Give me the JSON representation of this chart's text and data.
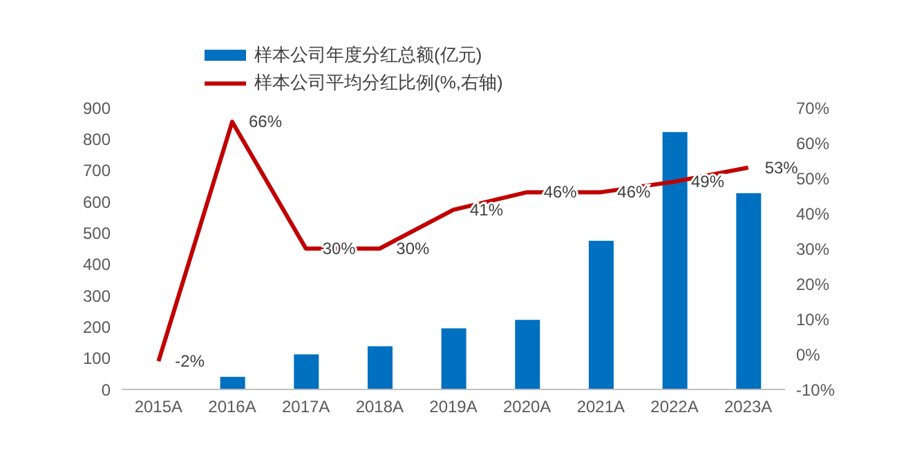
{
  "chart_data": {
    "type": "bar",
    "categories": [
      "2015A",
      "2016A",
      "2017A",
      "2018A",
      "2019A",
      "2020A",
      "2021A",
      "2022A",
      "2023A"
    ],
    "series": [
      {
        "name": "样本公司年度分红总额(亿元)",
        "color": "#0070c0",
        "values": [
          0,
          40,
          112,
          138,
          195,
          222,
          475,
          822,
          627
        ]
      },
      {
        "name": "样本公司平均分红比例(%,右轴)",
        "type": "line",
        "axis": "y2",
        "color": "#c00000",
        "values": [
          -2,
          66,
          30,
          30,
          41,
          46,
          46,
          49,
          53
        ],
        "value_labels": [
          "-2%",
          "66%",
          "30%",
          "30%",
          "41%",
          "46%",
          "46%",
          "49%",
          "53%"
        ]
      }
    ],
    "ylim": [
      0,
      900
    ],
    "yticks": [
      0,
      100,
      200,
      300,
      400,
      500,
      600,
      700,
      800,
      900
    ],
    "y2lim": [
      -10,
      70
    ],
    "y2ticks": [
      {
        "value": -10,
        "label": "-10%"
      },
      {
        "value": 0,
        "label": "0%"
      },
      {
        "value": 10,
        "label": "10%"
      },
      {
        "value": 20,
        "label": "20%"
      },
      {
        "value": 30,
        "label": "30%"
      },
      {
        "value": 40,
        "label": "40%"
      },
      {
        "value": 50,
        "label": "50%"
      },
      {
        "value": 60,
        "label": "60%"
      },
      {
        "value": 70,
        "label": "70%"
      }
    ],
    "legend": "top",
    "marker": "none",
    "line_style": "solid"
  }
}
